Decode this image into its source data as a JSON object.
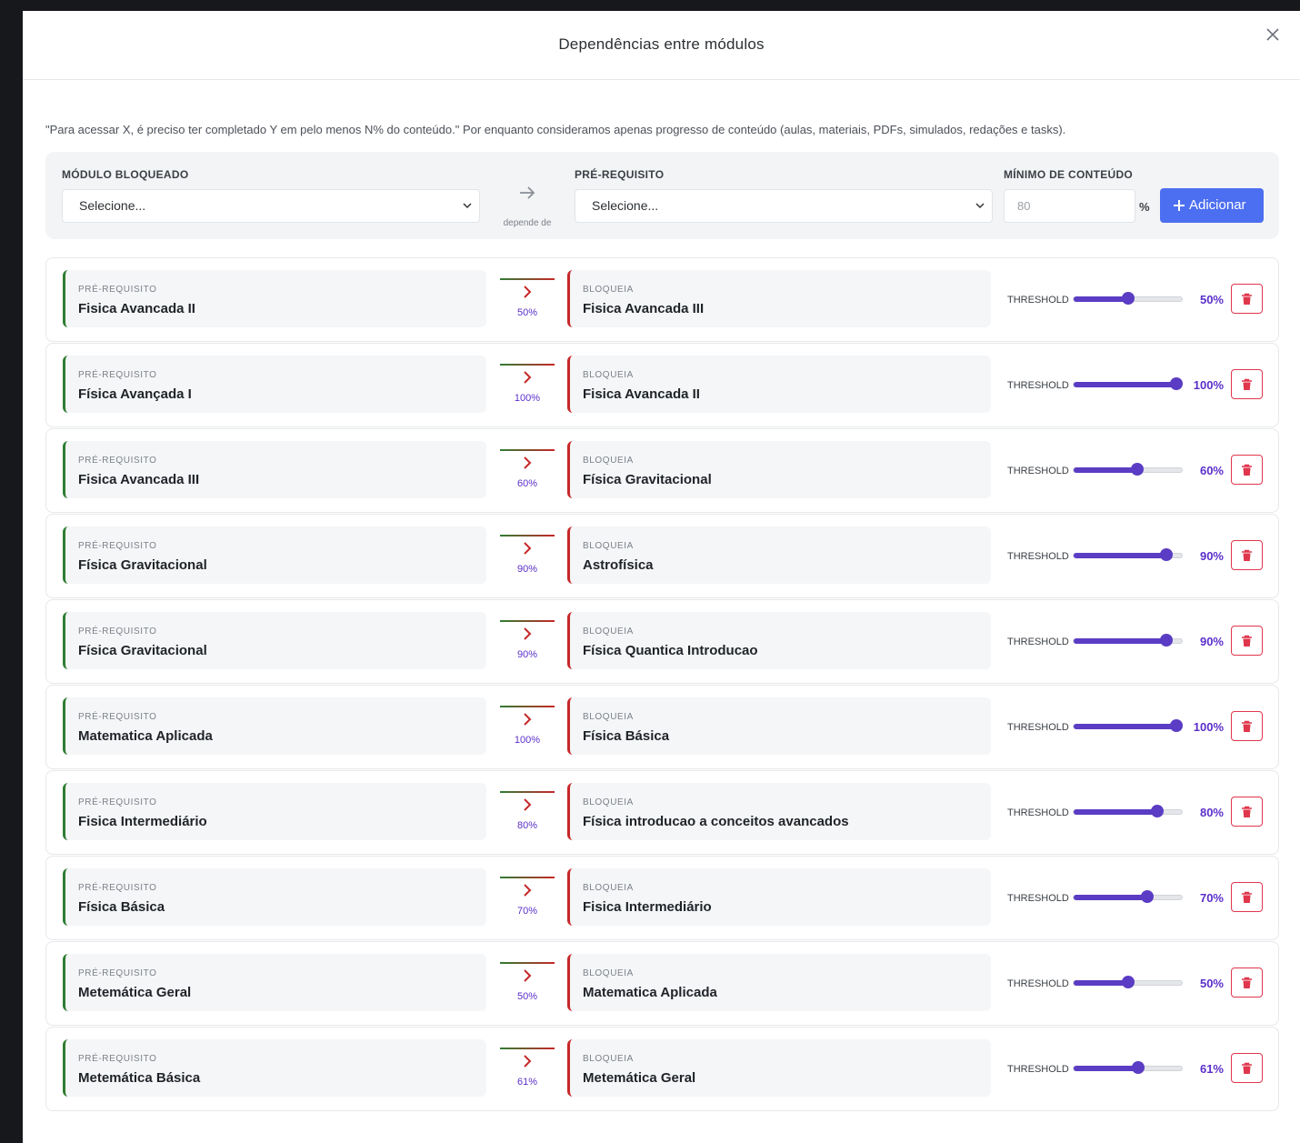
{
  "header": {
    "title": "Dependências entre módulos"
  },
  "description": "\"Para acessar X, é preciso ter completado Y em pelo menos N% do conteúdo.\" Por enquanto consideramos apenas progresso de conteúdo (aulas, materiais, PDFs, simulados, redações e tasks).",
  "form": {
    "blocked_label": "MÓDULO BLOQUEADO",
    "blocked_placeholder": "Selecione...",
    "depends_label": "depende de",
    "prereq_label": "PRÉ-REQUISITO",
    "prereq_placeholder": "Selecione...",
    "min_label": "MÍNIMO DE CONTEÚDO",
    "min_placeholder": "80",
    "percent_sign": "%",
    "add_button": "Adicionar"
  },
  "row_labels": {
    "prerequisite": "PRÉ-REQUISITO",
    "blocks": "BLOQUEIA",
    "threshold": "THRESHOLD"
  },
  "rows": [
    {
      "prerequisite": "Fisica Avancada II",
      "blocks": "Fisica Avancada III",
      "threshold": {
        "value": 50,
        "label": "50%"
      }
    },
    {
      "prerequisite": "Física Avançada I",
      "blocks": "Fisica Avancada II",
      "threshold": {
        "value": 100,
        "label": "100%"
      }
    },
    {
      "prerequisite": "Fisica Avancada III",
      "blocks": "Física Gravitacional",
      "threshold": {
        "value": 60,
        "label": "60%"
      }
    },
    {
      "prerequisite": "Física Gravitacional",
      "blocks": "Astrofísica",
      "threshold": {
        "value": 90,
        "label": "90%"
      }
    },
    {
      "prerequisite": "Física Gravitacional",
      "blocks": "Física Quantica Introducao",
      "threshold": {
        "value": 90,
        "label": "90%"
      }
    },
    {
      "prerequisite": "Matematica Aplicada",
      "blocks": "Física Básica",
      "threshold": {
        "value": 100,
        "label": "100%"
      }
    },
    {
      "prerequisite": "Fisica Intermediário",
      "blocks": "Física introducao a conceitos avancados",
      "threshold": {
        "value": 80,
        "label": "80%"
      }
    },
    {
      "prerequisite": "Física Básica",
      "blocks": "Fisica Intermediário",
      "threshold": {
        "value": 70,
        "label": "70%"
      }
    },
    {
      "prerequisite": "Metemática Geral",
      "blocks": "Matematica Aplicada",
      "threshold": {
        "value": 50,
        "label": "50%"
      }
    },
    {
      "prerequisite": "Metemática Básica",
      "blocks": "Metemática Geral",
      "threshold": {
        "value": 61,
        "label": "61%"
      }
    }
  ]
}
